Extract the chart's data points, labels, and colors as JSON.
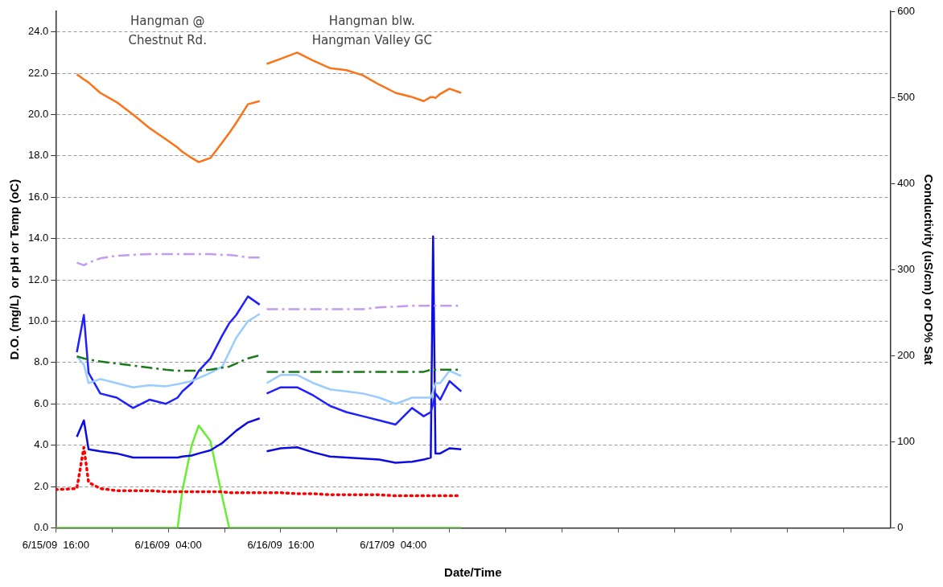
{
  "chart_data": {
    "type": "line",
    "xlabel": "Date/Time",
    "ylabel": "D.O. (mg/L)  or pH or Temp (oC)",
    "y2label": "Conductivity (uS/cm) or DO% Sat",
    "x": [
      "--06-15T16:00",
      "--06-15T18:15",
      "--06-15T19:00",
      "--06-15T19:30",
      "--06-15T20:45",
      "--06-15T22:30",
      "--06-16T00:15",
      "--06-16T02:00",
      "--06-16T03:45",
      "--06-16T05:00",
      "--06-16T05:30",
      "--06-16T06:30",
      "--06-16T07:15",
      "--06-16T08:30",
      "--06-16T09:45",
      "--06-16T10:30",
      "--06-16T11:15",
      "--06-16T12:30",
      "--06-16T13:45",
      "--06-16T14:00",
      "--06-16T14:30",
      "--06-16T16:00",
      "--06-16T17:45",
      "--06-16T19:30",
      "--06-16T21:15",
      "--06-16T23:00",
      "--06-17T00:45",
      "--06-17T02:30",
      "--06-17T04:15",
      "--06-17T06:00",
      "--06-17T07:15",
      "--06-17T08:00",
      "--06-17T08:15",
      "--06-17T08:30",
      "--06-17T09:00",
      "--06-17T10:00",
      "--06-17T11:15"
    ],
    "series": [
      {
        "color": "#fa7317",
        "line_style": "solid",
        "values": [
          null,
          21.95,
          21.7,
          21.55,
          21.05,
          20.6,
          20.0,
          19.35,
          18.8,
          18.4,
          18.2,
          17.9,
          17.7,
          17.9,
          18.65,
          19.1,
          19.6,
          20.5,
          20.65,
          null,
          22.45,
          22.7,
          23.0,
          22.6,
          22.25,
          22.15,
          21.9,
          21.45,
          21.05,
          20.85,
          20.65,
          20.85,
          20.85,
          20.8,
          21.0,
          21.25,
          21.05
        ]
      },
      {
        "color": "#c39bf3",
        "line_style": "dashed",
        "axis": "y2",
        "values": [
          null,
          308,
          305,
          308,
          313,
          316,
          317,
          318,
          318,
          318,
          318,
          318,
          318,
          318,
          317,
          317,
          316,
          314,
          314,
          null,
          254,
          254,
          254,
          254,
          254,
          254,
          254,
          256,
          257,
          258,
          258,
          258,
          258,
          258,
          258,
          258,
          258
        ]
      },
      {
        "color": "#1a7a1a",
        "line_style": "dashed",
        "values": [
          null,
          8.3,
          8.2,
          8.15,
          8.05,
          7.95,
          7.85,
          7.75,
          7.65,
          7.6,
          7.6,
          7.6,
          7.6,
          7.65,
          7.75,
          7.8,
          7.95,
          8.2,
          8.35,
          null,
          7.55,
          7.55,
          7.55,
          7.55,
          7.55,
          7.55,
          7.55,
          7.55,
          7.55,
          7.55,
          7.55,
          7.65,
          7.65,
          7.65,
          7.65,
          7.65,
          7.65
        ]
      },
      {
        "color": "#99ccff",
        "line_style": "solid",
        "values": [
          null,
          8.3,
          7.9,
          7.0,
          7.2,
          7.0,
          6.8,
          6.9,
          6.85,
          6.95,
          7.0,
          7.1,
          7.25,
          7.5,
          7.8,
          8.5,
          9.2,
          10.0,
          10.35,
          null,
          7.0,
          7.4,
          7.4,
          7.0,
          6.7,
          6.6,
          6.5,
          6.3,
          6.0,
          6.3,
          6.3,
          6.3,
          6.6,
          7.0,
          7.0,
          7.6,
          7.35
        ]
      },
      {
        "color": "#2020ff",
        "line_style": "solid",
        "values": [
          null,
          8.5,
          10.3,
          7.5,
          6.5,
          6.3,
          5.8,
          6.2,
          6.0,
          6.3,
          6.6,
          7.0,
          7.6,
          8.2,
          9.3,
          9.9,
          10.3,
          11.2,
          10.8,
          null,
          6.5,
          6.8,
          6.8,
          6.4,
          5.9,
          5.6,
          5.4,
          5.2,
          5.0,
          5.8,
          5.4,
          5.6,
          6.0,
          6.5,
          6.2,
          7.1,
          6.6
        ]
      },
      {
        "color": "#0c0ce0",
        "line_style": "solid",
        "values": [
          null,
          4.4,
          5.2,
          3.8,
          3.7,
          3.6,
          3.4,
          3.4,
          3.4,
          3.4,
          3.45,
          3.5,
          3.6,
          3.75,
          4.1,
          4.4,
          4.7,
          5.1,
          5.3,
          null,
          3.7,
          3.85,
          3.9,
          3.65,
          3.45,
          3.4,
          3.35,
          3.3,
          3.15,
          3.2,
          3.3,
          3.4,
          14.1,
          3.6,
          3.6,
          3.85,
          3.8
        ]
      },
      {
        "color": "#ff0000",
        "line_style": "dotted",
        "values": [
          1.85,
          1.9,
          3.9,
          2.2,
          1.9,
          1.8,
          1.8,
          1.8,
          1.75,
          1.75,
          1.75,
          1.75,
          1.75,
          1.75,
          1.75,
          1.7,
          1.7,
          1.7,
          1.7,
          1.7,
          1.7,
          1.7,
          1.65,
          1.65,
          1.6,
          1.6,
          1.6,
          1.6,
          1.55,
          1.55,
          1.55,
          1.55,
          1.55,
          1.55,
          1.55,
          1.55,
          1.55
        ]
      },
      {
        "color": "#66ee33",
        "line_style": "solid",
        "values": [
          0,
          0,
          0,
          0,
          0,
          0,
          0,
          0,
          0,
          0,
          1.8,
          4.0,
          4.95,
          4.2,
          1.5,
          0,
          0,
          0,
          0,
          0,
          0,
          0,
          0,
          0,
          0,
          0,
          0,
          0,
          0,
          0,
          0,
          0,
          0,
          0,
          0,
          0,
          0
        ]
      }
    ],
    "xlim": [
      "--06-15T16:00",
      "--06-19T09:00"
    ],
    "xticks": [
      {
        "value": "--06-15T16:00",
        "label": "6/15/09  16:00"
      },
      {
        "value": "--06-15T22:00",
        "label": null
      },
      {
        "value": "--06-16T04:00",
        "label": "6/16/09  04:00"
      },
      {
        "value": "--06-16T10:00",
        "label": null
      },
      {
        "value": "--06-16T16:00",
        "label": "6/16/09  16:00"
      },
      {
        "value": "--06-16T22:00",
        "label": null
      },
      {
        "value": "--06-17T04:00",
        "label": "6/17/09  04:00"
      },
      {
        "value": "--06-17T10:00",
        "label": null
      },
      {
        "value": "--06-17T16:00",
        "label": null
      },
      {
        "value": "--06-17T22:00",
        "label": null
      },
      {
        "value": "--06-18T04:00",
        "label": null
      },
      {
        "value": "--06-18T10:00",
        "label": null
      },
      {
        "value": "--06-18T16:00",
        "label": null
      },
      {
        "value": "--06-18T22:00",
        "label": null
      },
      {
        "value": "--06-19T04:00",
        "label": null
      }
    ],
    "ylim": [
      0,
      25
    ],
    "yticks": [
      {
        "value": 0,
        "label": "0.0"
      },
      {
        "value": 2,
        "label": "2.0"
      },
      {
        "value": 4,
        "label": "4.0"
      },
      {
        "value": 6,
        "label": "6.0"
      },
      {
        "value": 8,
        "label": "8.0"
      },
      {
        "value": 10,
        "label": "10.0"
      },
      {
        "value": 12,
        "label": "12.0"
      },
      {
        "value": 14,
        "label": "14.0"
      },
      {
        "value": 16,
        "label": "16.0"
      },
      {
        "value": 18,
        "label": "18.0"
      },
      {
        "value": 20,
        "label": "20.0"
      },
      {
        "value": 22,
        "label": "22.0"
      },
      {
        "value": 24,
        "label": "24.0"
      }
    ],
    "y2lim": [
      0,
      600
    ],
    "y2ticks": [
      0,
      100,
      200,
      300,
      400,
      500,
      600
    ],
    "grid": "y",
    "legend": false,
    "marker": "none",
    "annotations": [
      "Hangman @\nChestnut Rd.",
      "Hangman blw.\nHangman Valley GC"
    ]
  }
}
